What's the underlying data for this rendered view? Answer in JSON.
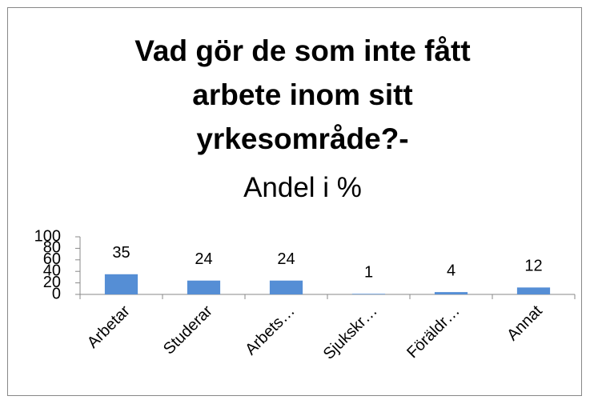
{
  "chart_data": {
    "type": "bar",
    "title": "Vad gör de som inte fått arbete inom sitt yrkesområde?-",
    "subtitle": "Andel i %",
    "categories": [
      "Arbetar",
      "Studerar",
      "Arbets…",
      "Sjukskr…",
      "Föräldr…",
      "Annat"
    ],
    "values": [
      35,
      24,
      24,
      1,
      4,
      12
    ],
    "color": "#558ed5",
    "ylim": [
      0,
      100
    ],
    "yticks": [
      0,
      20,
      40,
      60,
      80,
      100
    ],
    "grid": false
  }
}
